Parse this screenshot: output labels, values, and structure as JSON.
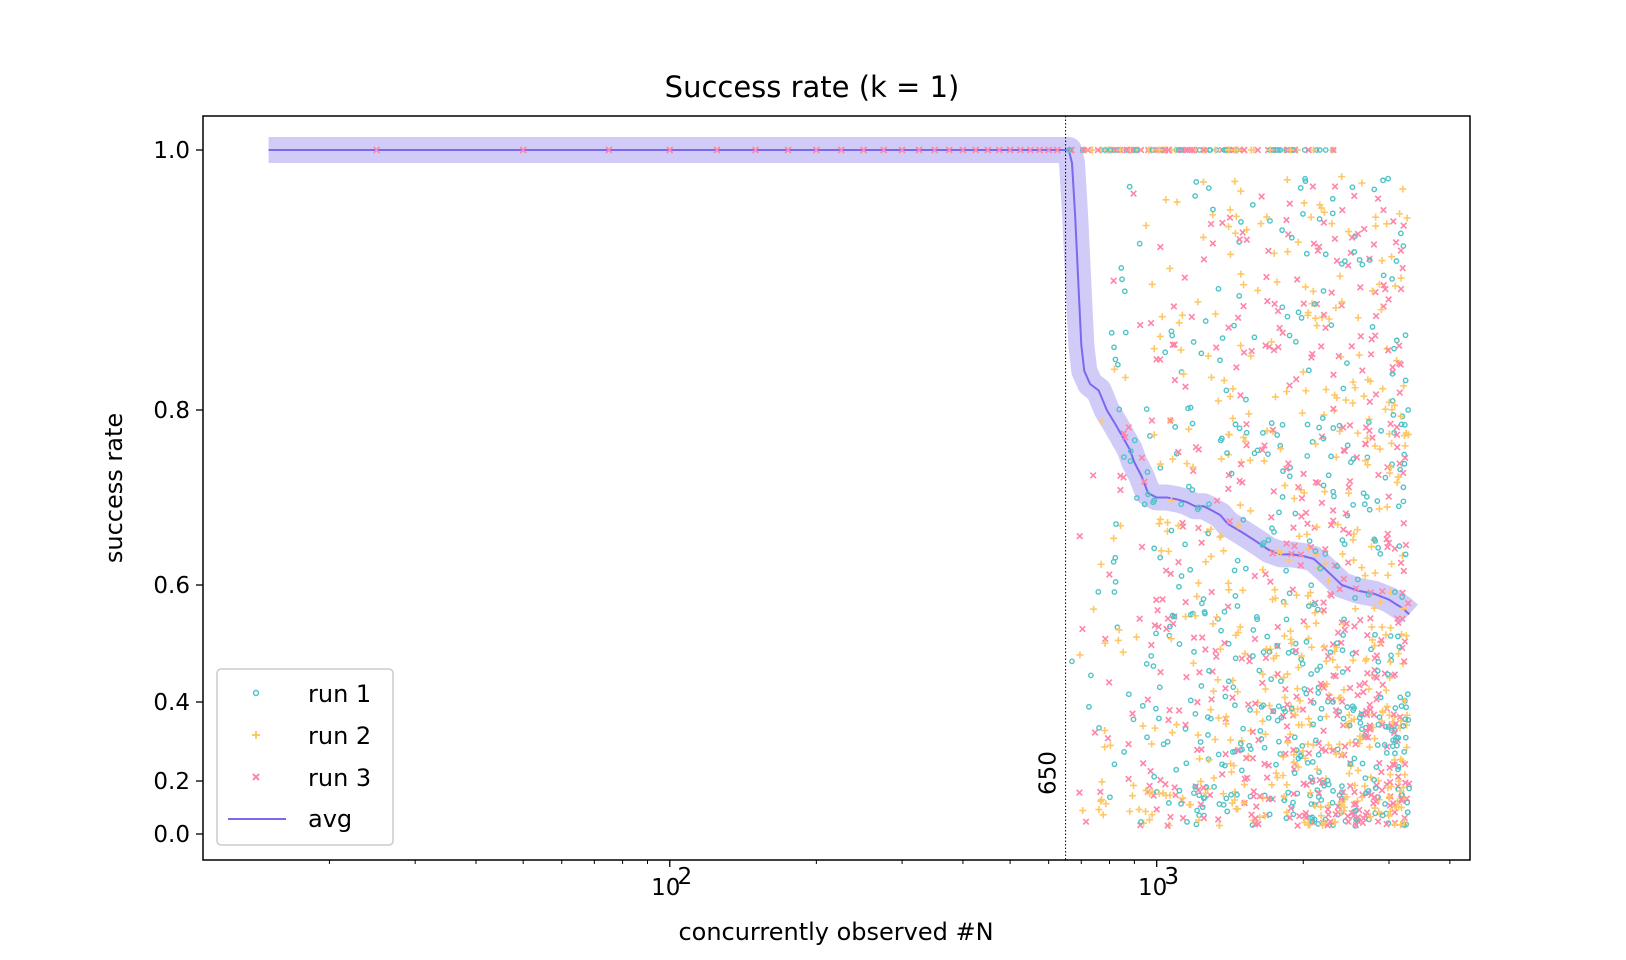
{
  "colors": {
    "run1": "#4fc3c7",
    "run2": "#ffc766",
    "run3": "#ff85a8",
    "avg": "#7b68ee",
    "avg_band": "#c9c2f7"
  },
  "chart_data": {
    "type": "scatter",
    "title": "Success rate (k = 1)",
    "xlabel": "concurrently observed #N",
    "ylabel": "success rate",
    "xscale": "log",
    "xlim": [
      11,
      4400
    ],
    "ylim": [
      -0.03,
      1.03
    ],
    "x_ticks": [
      {
        "value": 100,
        "base": "10",
        "exp": "2"
      },
      {
        "value": 1000,
        "base": "10",
        "exp": "3"
      }
    ],
    "y_ticks": [
      {
        "value": 1.0,
        "label": "1.0"
      },
      {
        "value": 0.8,
        "label": "0.8"
      },
      {
        "value": 0.6,
        "label": "0.6"
      },
      {
        "value": 0.4,
        "label": "0.4"
      },
      {
        "value": 0.2,
        "label": "0.2"
      },
      {
        "value": 0.0,
        "label": "0.0"
      }
    ],
    "y_tick_positions": [
      {
        "value": 1.0,
        "at": 1.0
      },
      {
        "value": 0.8,
        "at": 0.62
      },
      {
        "value": 0.6,
        "at": 0.36
      },
      {
        "value": 0.4,
        "at": 0.19
      },
      {
        "value": 0.2,
        "at": 0.077
      },
      {
        "value": 0.0,
        "at": 0.0
      }
    ],
    "vline": {
      "x": 650,
      "label": "650",
      "style": "dotted"
    },
    "legend": {
      "position": "lower-left",
      "entries": [
        "run 1",
        "run 2",
        "run 3",
        "avg"
      ]
    },
    "series": [
      {
        "name": "avg",
        "kind": "line",
        "points": [
          [
            15,
            1.0
          ],
          [
            660,
            1.0
          ],
          [
            670,
            0.99
          ],
          [
            680,
            0.95
          ],
          [
            690,
            0.9
          ],
          [
            700,
            0.85
          ],
          [
            710,
            0.83
          ],
          [
            730,
            0.82
          ],
          [
            760,
            0.815
          ],
          [
            790,
            0.8
          ],
          [
            820,
            0.785
          ],
          [
            850,
            0.77
          ],
          [
            880,
            0.755
          ],
          [
            900,
            0.74
          ],
          [
            930,
            0.725
          ],
          [
            960,
            0.705
          ],
          [
            1000,
            0.7
          ],
          [
            1050,
            0.7
          ],
          [
            1100,
            0.698
          ],
          [
            1150,
            0.695
          ],
          [
            1200,
            0.69
          ],
          [
            1250,
            0.69
          ],
          [
            1300,
            0.685
          ],
          [
            1350,
            0.68
          ],
          [
            1400,
            0.67
          ],
          [
            1500,
            0.66
          ],
          [
            1600,
            0.65
          ],
          [
            1700,
            0.64
          ],
          [
            1800,
            0.635
          ],
          [
            1900,
            0.635
          ],
          [
            2000,
            0.633
          ],
          [
            2100,
            0.63
          ],
          [
            2200,
            0.62
          ],
          [
            2300,
            0.61
          ],
          [
            2400,
            0.6
          ],
          [
            2600,
            0.59
          ],
          [
            2800,
            0.585
          ],
          [
            3000,
            0.575
          ],
          [
            3200,
            0.56
          ],
          [
            3300,
            0.55
          ]
        ]
      },
      {
        "name": "run 1",
        "kind": "scatter",
        "marker": "circle",
        "region": {
          "x_min": 650,
          "x_max": 3300
        }
      },
      {
        "name": "run 2",
        "kind": "scatter",
        "marker": "plus",
        "region": {
          "x_min": 650,
          "x_max": 3300
        }
      },
      {
        "name": "run 3",
        "kind": "scatter",
        "marker": "x",
        "points_left": [
          25,
          50,
          75,
          100,
          125,
          150,
          175,
          200,
          225,
          250,
          275,
          300,
          325,
          350,
          375,
          400,
          425,
          450,
          475,
          500,
          525,
          550,
          575,
          600,
          625
        ]
      }
    ]
  }
}
